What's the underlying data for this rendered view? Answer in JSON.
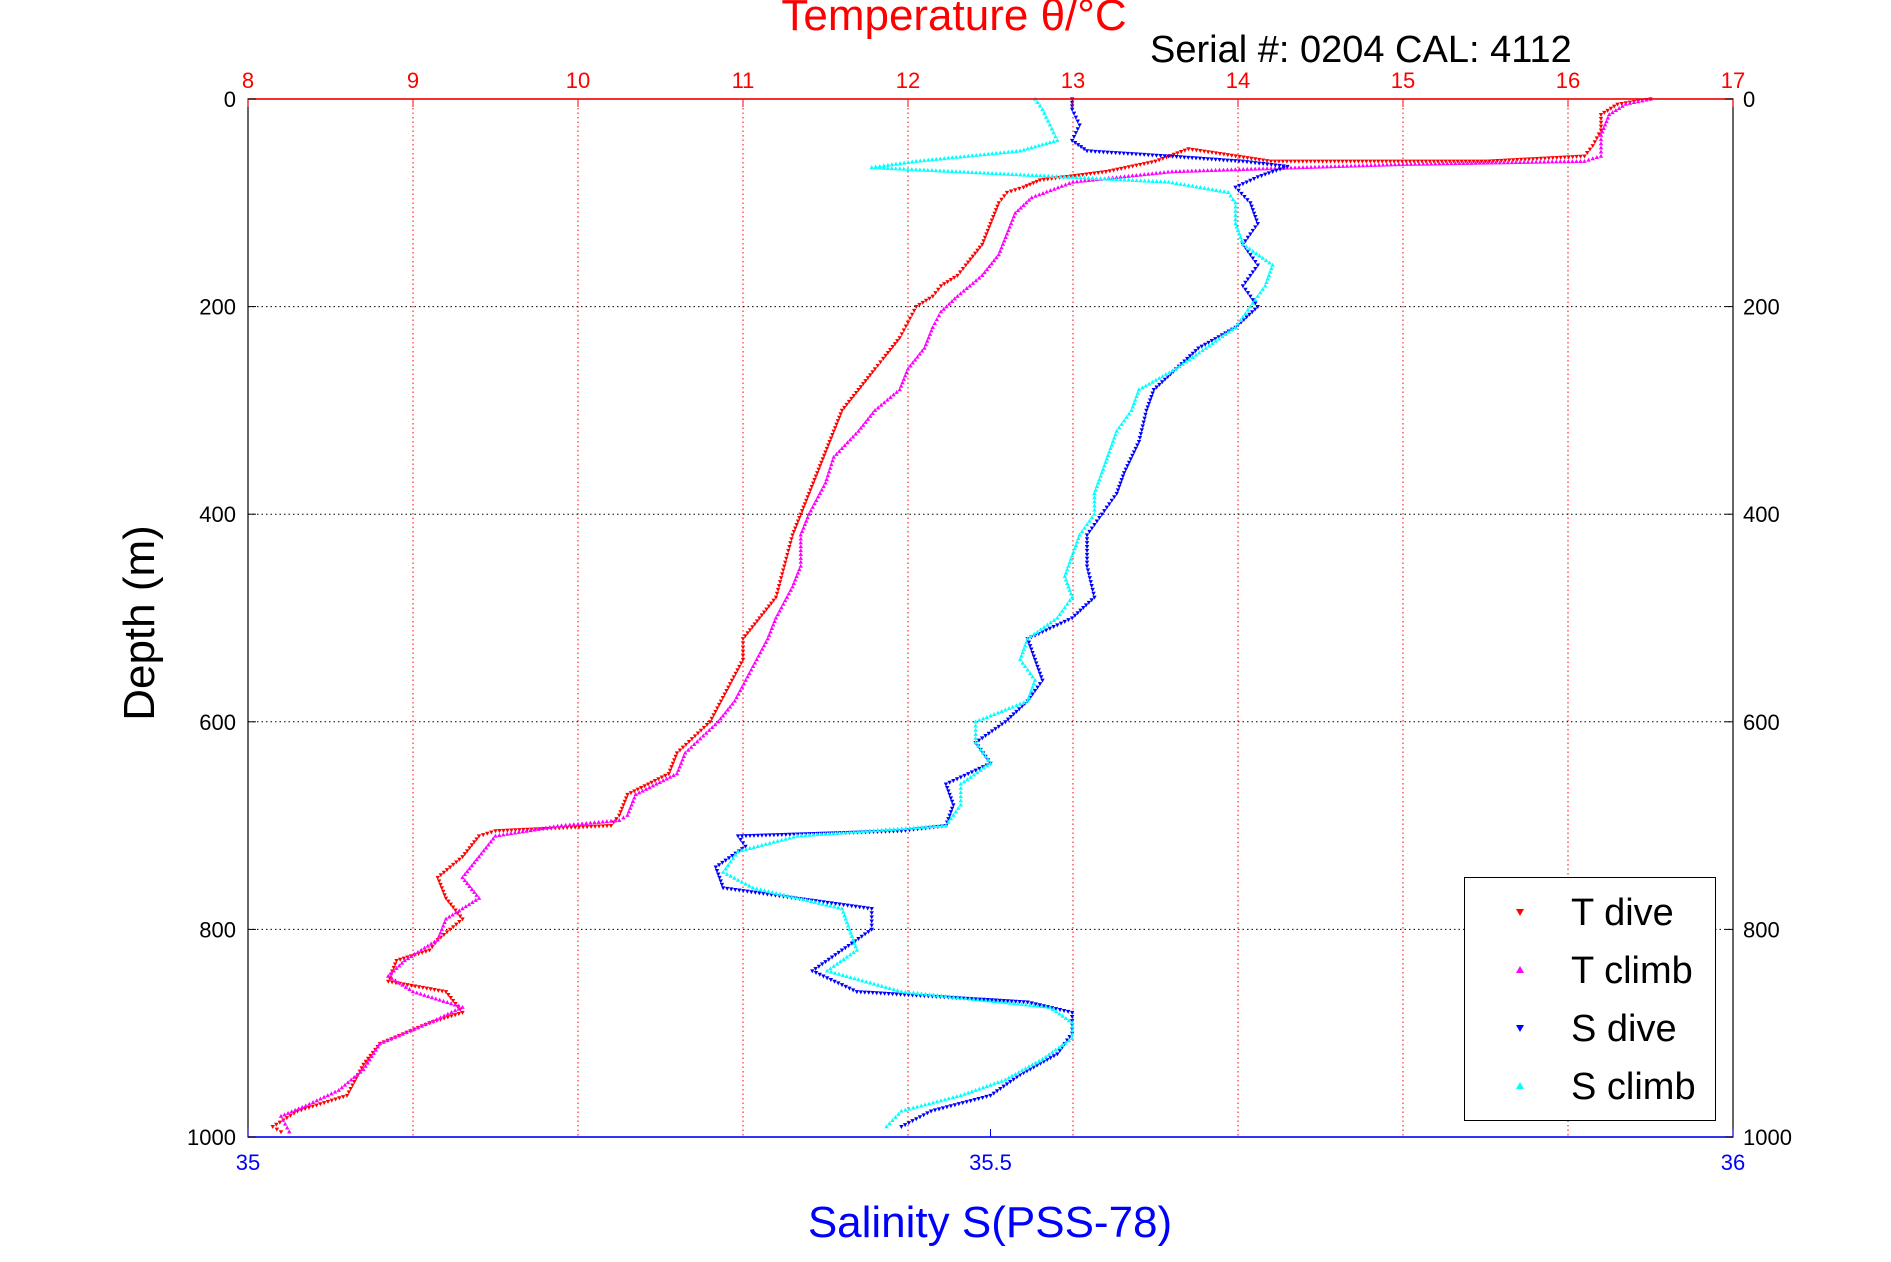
{
  "chart_data": {
    "type": "scatter",
    "title": "Temperature θ/°C",
    "subtitle": "Serial #: 0204  CAL: 4112",
    "ylabel": "Depth (m)",
    "xlabel": "Salinity S(PSS-78)",
    "ylim": [
      1000,
      0
    ],
    "yticks": [
      0,
      200,
      400,
      600,
      800,
      1000
    ],
    "x_top": {
      "label": "Temperature θ/°C",
      "lim": [
        8,
        17
      ],
      "ticks": [
        8,
        9,
        10,
        11,
        12,
        13,
        14,
        15,
        16,
        17
      ],
      "color": "#ff0000"
    },
    "x_bottom": {
      "label": "Salinity S(PSS-78)",
      "lim": [
        35,
        36
      ],
      "ticks": [
        "35",
        "35.5",
        "36"
      ],
      "tick_values": [
        35,
        35.5,
        36
      ],
      "color": "#0000ff"
    },
    "grid": true,
    "legend_position": "bottom-right",
    "series": [
      {
        "name": "T dive",
        "axis": "top",
        "color": "#ff0000",
        "marker": "down-triangle",
        "points": [
          [
            16.5,
            0
          ],
          [
            16.3,
            5
          ],
          [
            16.2,
            15
          ],
          [
            16.2,
            30
          ],
          [
            16.15,
            45
          ],
          [
            16.1,
            55
          ],
          [
            15.5,
            60
          ],
          [
            14.2,
            60
          ],
          [
            13.7,
            48
          ],
          [
            13.5,
            60
          ],
          [
            13.2,
            70
          ],
          [
            12.8,
            78
          ],
          [
            12.7,
            85
          ],
          [
            12.6,
            90
          ],
          [
            12.55,
            100
          ],
          [
            12.5,
            120
          ],
          [
            12.45,
            140
          ],
          [
            12.35,
            160
          ],
          [
            12.3,
            170
          ],
          [
            12.2,
            180
          ],
          [
            12.15,
            190
          ],
          [
            12.05,
            200
          ],
          [
            12.0,
            215
          ],
          [
            11.95,
            230
          ],
          [
            11.85,
            250
          ],
          [
            11.8,
            260
          ],
          [
            11.7,
            280
          ],
          [
            11.6,
            300
          ],
          [
            11.55,
            320
          ],
          [
            11.5,
            340
          ],
          [
            11.45,
            360
          ],
          [
            11.4,
            380
          ],
          [
            11.35,
            400
          ],
          [
            11.3,
            420
          ],
          [
            11.25,
            450
          ],
          [
            11.2,
            480
          ],
          [
            11.1,
            500
          ],
          [
            11.0,
            520
          ],
          [
            11.0,
            540
          ],
          [
            10.9,
            570
          ],
          [
            10.8,
            600
          ],
          [
            10.6,
            630
          ],
          [
            10.55,
            650
          ],
          [
            10.3,
            670
          ],
          [
            10.25,
            690
          ],
          [
            10.2,
            700
          ],
          [
            9.5,
            705
          ],
          [
            9.4,
            710
          ],
          [
            9.3,
            730
          ],
          [
            9.15,
            750
          ],
          [
            9.2,
            770
          ],
          [
            9.3,
            790
          ],
          [
            9.15,
            810
          ],
          [
            9.1,
            820
          ],
          [
            8.9,
            830
          ],
          [
            8.85,
            850
          ],
          [
            9.2,
            860
          ],
          [
            9.3,
            880
          ],
          [
            9.1,
            890
          ],
          [
            8.8,
            910
          ],
          [
            8.7,
            930
          ],
          [
            8.6,
            960
          ],
          [
            8.3,
            975
          ],
          [
            8.15,
            990
          ],
          [
            8.2,
            995
          ]
        ]
      },
      {
        "name": "T climb",
        "axis": "top",
        "color": "#ff00ff",
        "marker": "up-triangle",
        "points": [
          [
            16.5,
            0
          ],
          [
            16.35,
            5
          ],
          [
            16.25,
            15
          ],
          [
            16.2,
            35
          ],
          [
            16.2,
            55
          ],
          [
            16.1,
            60
          ],
          [
            15.0,
            63
          ],
          [
            14.2,
            67
          ],
          [
            13.6,
            70
          ],
          [
            13.0,
            80
          ],
          [
            12.75,
            95
          ],
          [
            12.65,
            110
          ],
          [
            12.6,
            130
          ],
          [
            12.55,
            150
          ],
          [
            12.45,
            170
          ],
          [
            12.3,
            190
          ],
          [
            12.2,
            205
          ],
          [
            12.15,
            220
          ],
          [
            12.1,
            240
          ],
          [
            12.0,
            260
          ],
          [
            11.95,
            280
          ],
          [
            11.8,
            300
          ],
          [
            11.7,
            320
          ],
          [
            11.55,
            345
          ],
          [
            11.5,
            370
          ],
          [
            11.4,
            400
          ],
          [
            11.35,
            420
          ],
          [
            11.35,
            450
          ],
          [
            11.3,
            470
          ],
          [
            11.2,
            500
          ],
          [
            11.15,
            520
          ],
          [
            11.05,
            550
          ],
          [
            10.95,
            580
          ],
          [
            10.85,
            600
          ],
          [
            10.65,
            630
          ],
          [
            10.6,
            650
          ],
          [
            10.35,
            670
          ],
          [
            10.3,
            690
          ],
          [
            10.25,
            695
          ],
          [
            9.9,
            700
          ],
          [
            9.5,
            710
          ],
          [
            9.4,
            730
          ],
          [
            9.3,
            750
          ],
          [
            9.4,
            770
          ],
          [
            9.2,
            790
          ],
          [
            9.15,
            810
          ],
          [
            8.95,
            830
          ],
          [
            8.85,
            845
          ],
          [
            9.0,
            860
          ],
          [
            9.3,
            875
          ],
          [
            9.1,
            890
          ],
          [
            8.8,
            910
          ],
          [
            8.7,
            935
          ],
          [
            8.55,
            955
          ],
          [
            8.35,
            970
          ],
          [
            8.2,
            980
          ],
          [
            8.25,
            995
          ]
        ]
      },
      {
        "name": "S dive",
        "axis": "bottom",
        "color": "#0000ff",
        "marker": "down-triangle",
        "points": [
          [
            35.555,
            0
          ],
          [
            35.555,
            10
          ],
          [
            35.56,
            25
          ],
          [
            35.555,
            40
          ],
          [
            35.565,
            50
          ],
          [
            35.62,
            55
          ],
          [
            35.67,
            60
          ],
          [
            35.7,
            65
          ],
          [
            35.68,
            75
          ],
          [
            35.665,
            85
          ],
          [
            35.675,
            100
          ],
          [
            35.68,
            120
          ],
          [
            35.67,
            140
          ],
          [
            35.68,
            160
          ],
          [
            35.67,
            180
          ],
          [
            35.68,
            200
          ],
          [
            35.665,
            220
          ],
          [
            35.64,
            240
          ],
          [
            35.625,
            260
          ],
          [
            35.61,
            280
          ],
          [
            35.605,
            300
          ],
          [
            35.6,
            330
          ],
          [
            35.59,
            360
          ],
          [
            35.585,
            380
          ],
          [
            35.575,
            400
          ],
          [
            35.565,
            420
          ],
          [
            35.565,
            450
          ],
          [
            35.57,
            480
          ],
          [
            35.555,
            500
          ],
          [
            35.525,
            520
          ],
          [
            35.53,
            540
          ],
          [
            35.535,
            560
          ],
          [
            35.525,
            580
          ],
          [
            35.51,
            600
          ],
          [
            35.49,
            620
          ],
          [
            35.5,
            640
          ],
          [
            35.47,
            660
          ],
          [
            35.475,
            680
          ],
          [
            35.47,
            700
          ],
          [
            35.44,
            705
          ],
          [
            35.33,
            710
          ],
          [
            35.335,
            720
          ],
          [
            35.315,
            740
          ],
          [
            35.32,
            760
          ],
          [
            35.42,
            780
          ],
          [
            35.42,
            800
          ],
          [
            35.4,
            820
          ],
          [
            35.38,
            840
          ],
          [
            35.41,
            860
          ],
          [
            35.525,
            870
          ],
          [
            35.555,
            880
          ],
          [
            35.555,
            900
          ],
          [
            35.545,
            920
          ],
          [
            35.52,
            940
          ],
          [
            35.5,
            960
          ],
          [
            35.46,
            975
          ],
          [
            35.44,
            990
          ]
        ]
      },
      {
        "name": "S climb",
        "axis": "bottom",
        "color": "#00ffff",
        "marker": "up-triangle",
        "points": [
          [
            35.53,
            0
          ],
          [
            35.535,
            10
          ],
          [
            35.54,
            25
          ],
          [
            35.545,
            40
          ],
          [
            35.52,
            50
          ],
          [
            35.45,
            60
          ],
          [
            35.42,
            66
          ],
          [
            35.62,
            80
          ],
          [
            35.66,
            90
          ],
          [
            35.665,
            100
          ],
          [
            35.665,
            120
          ],
          [
            35.67,
            140
          ],
          [
            35.69,
            160
          ],
          [
            35.685,
            180
          ],
          [
            35.675,
            200
          ],
          [
            35.665,
            220
          ],
          [
            35.645,
            240
          ],
          [
            35.625,
            260
          ],
          [
            35.6,
            280
          ],
          [
            35.595,
            300
          ],
          [
            35.585,
            320
          ],
          [
            35.58,
            340
          ],
          [
            35.575,
            360
          ],
          [
            35.57,
            380
          ],
          [
            35.57,
            400
          ],
          [
            35.56,
            420
          ],
          [
            35.555,
            440
          ],
          [
            35.55,
            460
          ],
          [
            35.555,
            480
          ],
          [
            35.545,
            500
          ],
          [
            35.525,
            520
          ],
          [
            35.52,
            540
          ],
          [
            35.53,
            560
          ],
          [
            35.525,
            580
          ],
          [
            35.49,
            600
          ],
          [
            35.49,
            620
          ],
          [
            35.5,
            640
          ],
          [
            35.48,
            660
          ],
          [
            35.48,
            680
          ],
          [
            35.47,
            700
          ],
          [
            35.37,
            710
          ],
          [
            35.33,
            725
          ],
          [
            35.32,
            745
          ],
          [
            35.34,
            760
          ],
          [
            35.4,
            780
          ],
          [
            35.405,
            800
          ],
          [
            35.41,
            820
          ],
          [
            35.39,
            840
          ],
          [
            35.44,
            860
          ],
          [
            35.54,
            875
          ],
          [
            35.555,
            890
          ],
          [
            35.555,
            905
          ],
          [
            35.535,
            925
          ],
          [
            35.51,
            945
          ],
          [
            35.48,
            960
          ],
          [
            35.44,
            975
          ],
          [
            35.43,
            990
          ]
        ]
      }
    ]
  }
}
